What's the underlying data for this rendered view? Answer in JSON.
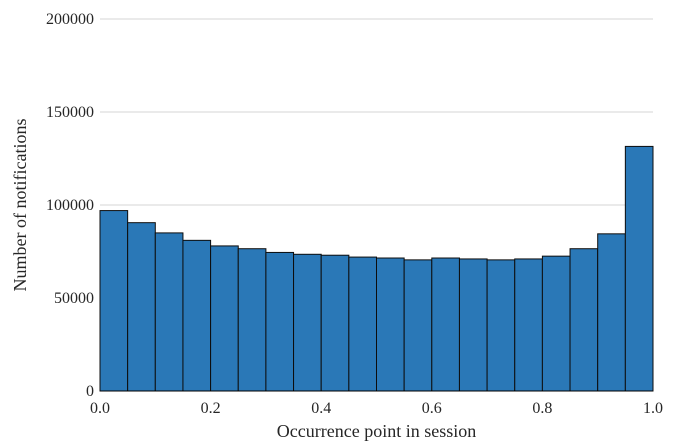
{
  "chart_data": {
    "type": "bar",
    "title": "",
    "xlabel": "Occurrence point in session",
    "ylabel": "Number of notifications",
    "xlim": [
      0.0,
      1.0
    ],
    "ylim": [
      0,
      200000
    ],
    "x_ticks": [
      0.0,
      0.2,
      0.4,
      0.6,
      0.8,
      1.0
    ],
    "x_tick_labels": [
      "0.0",
      "0.2",
      "0.4",
      "0.6",
      "0.8",
      "1.0"
    ],
    "y_ticks": [
      0,
      50000,
      100000,
      150000,
      200000
    ],
    "y_tick_labels": [
      "0",
      "50000",
      "100000",
      "150000",
      "200000"
    ],
    "grid": "horizontal",
    "bin_edges": [
      0.0,
      0.05,
      0.1,
      0.15,
      0.2,
      0.25,
      0.3,
      0.35,
      0.4,
      0.45,
      0.5,
      0.55,
      0.6,
      0.65,
      0.7,
      0.75,
      0.8,
      0.85,
      0.9,
      0.95,
      1.0
    ],
    "values": [
      97000,
      90500,
      85000,
      81000,
      78000,
      76500,
      74500,
      73500,
      73000,
      72000,
      71500,
      70500,
      71500,
      71000,
      70500,
      71000,
      72500,
      76500,
      84500,
      131500
    ],
    "colors": {
      "bar_fill": "#2a78b7",
      "bar_edge": "#0d0d0d",
      "grid": "#d4d4d4",
      "text": "#262626"
    }
  }
}
